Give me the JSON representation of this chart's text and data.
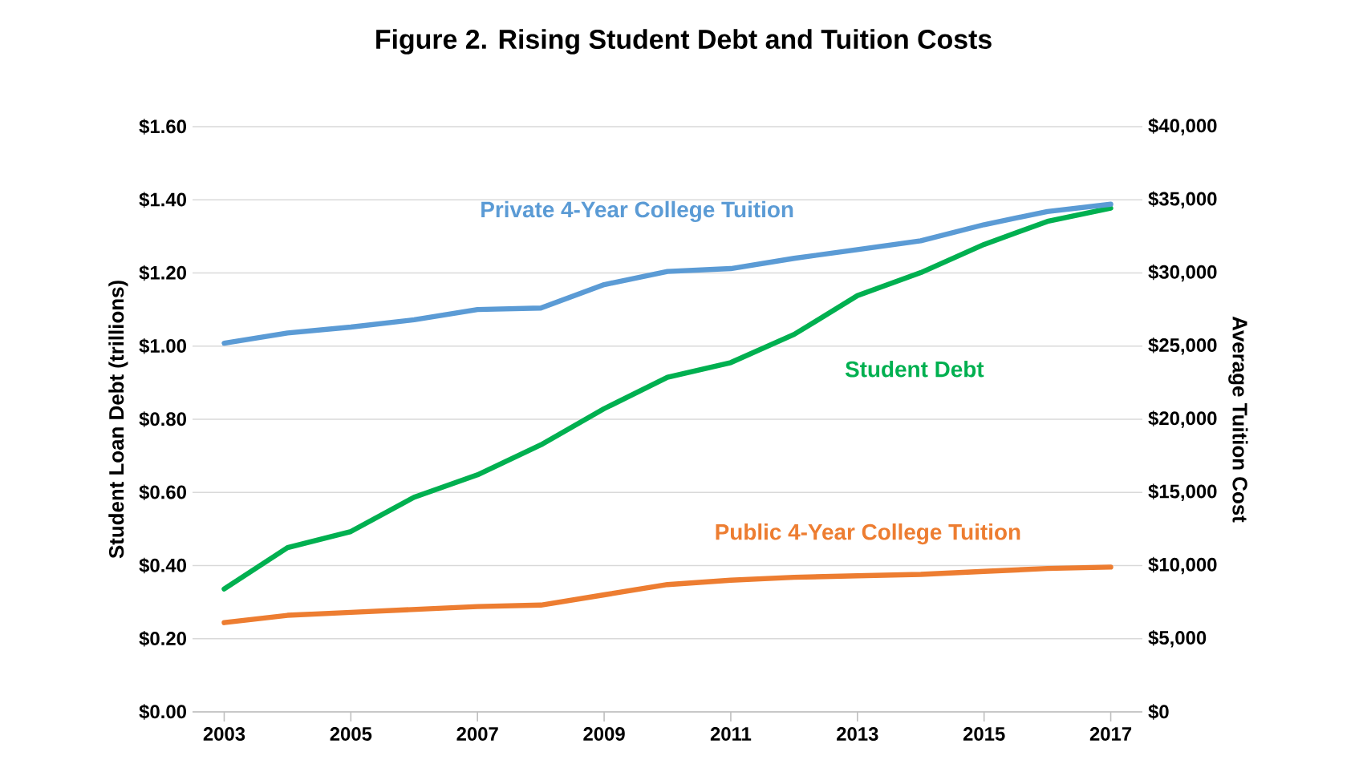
{
  "chart_data": {
    "type": "line",
    "title": "Figure 2. Rising Student Debt and Tuition Costs",
    "ylabel": "Student Loan Debt  (trillions)",
    "y2label": "Average Tuition Cost",
    "x": [
      2003,
      2004,
      2005,
      2006,
      2007,
      2008,
      2009,
      2010,
      2011,
      2012,
      2013,
      2014,
      2015,
      2016,
      2017
    ],
    "xlim": [
      2002.5,
      2017.5
    ],
    "xticks": [
      2003,
      2005,
      2007,
      2009,
      2011,
      2013,
      2015,
      2017
    ],
    "ylim": [
      0,
      1.6
    ],
    "yticks": [
      {
        "value": 0,
        "label": "$0.00"
      },
      {
        "value": 0.2,
        "label": "$0.20"
      },
      {
        "value": 0.4,
        "label": "$0.40"
      },
      {
        "value": 0.6,
        "label": "$0.60"
      },
      {
        "value": 0.8,
        "label": "$0.80"
      },
      {
        "value": 1.0,
        "label": "$1.00"
      },
      {
        "value": 1.2,
        "label": "$1.20"
      },
      {
        "value": 1.4,
        "label": "$1.40"
      },
      {
        "value": 1.6,
        "label": "$1.60"
      }
    ],
    "y2lim": [
      0,
      40000
    ],
    "y2ticks": [
      {
        "value": 0,
        "label": "$0"
      },
      {
        "value": 5000,
        "label": "$5,000"
      },
      {
        "value": 10000,
        "label": "$10,000"
      },
      {
        "value": 15000,
        "label": "$15,000"
      },
      {
        "value": 20000,
        "label": "$20,000"
      },
      {
        "value": 25000,
        "label": "$25,000"
      },
      {
        "value": 30000,
        "label": "$30,000"
      },
      {
        "value": 35000,
        "label": "$35,000"
      },
      {
        "value": 40000,
        "label": "$40,000"
      }
    ],
    "grid": "y",
    "legend": false,
    "marker": "none",
    "line_style": "solid",
    "series": [
      {
        "name": "Student Debt",
        "color": "#00b050",
        "values": [
          0.336,
          0.449,
          0.493,
          0.587,
          0.648,
          0.73,
          0.829,
          0.915,
          0.955,
          1.032,
          1.138,
          1.201,
          1.278,
          1.341,
          1.377
        ]
      },
      {
        "name": "Private 4-Year College Tuition",
        "color": "#5b9bd5",
        "axis": "y2",
        "values": [
          25200,
          25900,
          26300,
          26800,
          27500,
          27600,
          29200,
          30100,
          30300,
          31000,
          31600,
          32200,
          33300,
          34200,
          34700
        ]
      },
      {
        "name": "Public 4-Year College Tuition",
        "color": "#ed7d31",
        "axis": "y2",
        "values": [
          6100,
          6600,
          6800,
          7000,
          7200,
          7300,
          8000,
          8700,
          9000,
          9200,
          9300,
          9400,
          9600,
          9800,
          9900
        ]
      }
    ]
  }
}
